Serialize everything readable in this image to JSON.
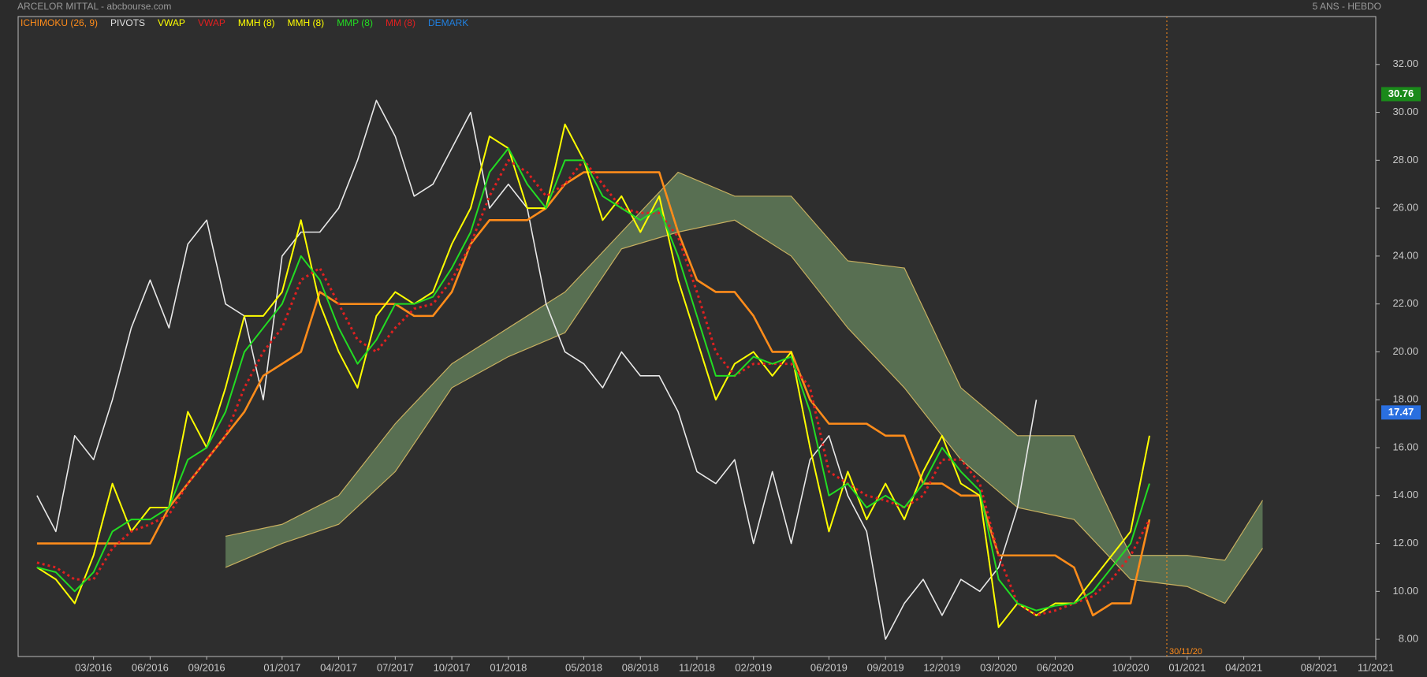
{
  "chart_data": {
    "type": "line",
    "title": "ARCELOR MITTAL - abcbourse.com",
    "subtitle": "5 ANS - HEBDO",
    "legend": [
      {
        "name": "ICHIMOKU (26, 9)",
        "color": "#ff8c1a"
      },
      {
        "name": "PIVOTS",
        "color": "#e0e0e0"
      },
      {
        "name": "VWAP",
        "color": "#ffff00"
      },
      {
        "name": "VWAP",
        "color": "#e02020"
      },
      {
        "name": "MMH (8)",
        "color": "#ffff00"
      },
      {
        "name": "MMH (8)",
        "color": "#ffff00"
      },
      {
        "name": "MMP (8)",
        "color": "#22dd22"
      },
      {
        "name": "MM (8)",
        "color": "#e02020"
      },
      {
        "name": "DEMARK",
        "color": "#2080e0"
      }
    ],
    "x": [
      "12/2015",
      "01/2016",
      "02/2016",
      "03/2016",
      "04/2016",
      "05/2016",
      "06/2016",
      "07/2016",
      "08/2016",
      "09/2016",
      "10/2016",
      "11/2016",
      "12/2016",
      "01/2017",
      "02/2017",
      "03/2017",
      "04/2017",
      "05/2017",
      "06/2017",
      "07/2017",
      "08/2017",
      "09/2017",
      "10/2017",
      "11/2017",
      "12/2017",
      "01/2018",
      "02/2018",
      "03/2018",
      "04/2018",
      "05/2018",
      "06/2018",
      "07/2018",
      "08/2018",
      "09/2018",
      "10/2018",
      "11/2018",
      "12/2018",
      "01/2019",
      "02/2019",
      "03/2019",
      "04/2019",
      "05/2019",
      "06/2019",
      "07/2019",
      "08/2019",
      "09/2019",
      "10/2019",
      "11/2019",
      "12/2019",
      "01/2020",
      "02/2020",
      "03/2020",
      "04/2020",
      "05/2020",
      "06/2020",
      "07/2020",
      "08/2020",
      "09/2020",
      "10/2020",
      "11/2020"
    ],
    "series": [
      {
        "name": "PIVOTS",
        "color": "#e8e8e8",
        "width": 1.6,
        "values": [
          14.0,
          12.5,
          16.5,
          15.5,
          18.0,
          21.0,
          23.0,
          21.0,
          24.5,
          25.5,
          22.0,
          21.5,
          18.0,
          24.0,
          25.0,
          25.0,
          26.0,
          28.0,
          30.5,
          29.0,
          26.5,
          27.0,
          28.5,
          30.0,
          26.0,
          27.0,
          26.0,
          22.0,
          20.0,
          19.5,
          18.5,
          20.0,
          19.0,
          19.0,
          17.5,
          15.0,
          14.5,
          15.5,
          12.0,
          15.0,
          12.0,
          15.5,
          16.5,
          14.0,
          12.5,
          8.0,
          9.5,
          10.5,
          9.0,
          10.5,
          10.0,
          11.0,
          13.5,
          18.0,
          null,
          null,
          null,
          null,
          null,
          null
        ]
      },
      {
        "name": "ICHIMOKU (26, 9)",
        "color": "#ff8c1a",
        "width": 2.6,
        "values": [
          12.0,
          12.0,
          12.0,
          12.0,
          12.0,
          12.0,
          12.0,
          13.5,
          14.5,
          15.5,
          16.5,
          17.5,
          19.0,
          19.5,
          20.0,
          22.5,
          22.0,
          22.0,
          22.0,
          22.0,
          21.5,
          21.5,
          22.5,
          24.5,
          25.5,
          25.5,
          25.5,
          26.0,
          27.0,
          27.5,
          27.5,
          27.5,
          27.5,
          27.5,
          25.0,
          23.0,
          22.5,
          22.5,
          21.5,
          20.0,
          20.0,
          18.0,
          17.0,
          17.0,
          17.0,
          16.5,
          16.5,
          14.5,
          14.5,
          14.0,
          14.0,
          11.5,
          11.5,
          11.5,
          11.5,
          11.0,
          9.0,
          9.5,
          9.5,
          13.0
        ]
      },
      {
        "name": "VWAP",
        "color": "#ffff00",
        "width": 2,
        "values": [
          11.0,
          10.5,
          9.5,
          11.5,
          14.5,
          12.5,
          13.5,
          13.5,
          17.5,
          16.0,
          18.5,
          21.5,
          21.5,
          22.5,
          25.5,
          22.0,
          20.0,
          18.5,
          21.5,
          22.5,
          22.0,
          22.5,
          24.5,
          26.0,
          29.0,
          28.5,
          26.0,
          26.0,
          29.5,
          28.0,
          25.5,
          26.5,
          25.0,
          26.5,
          23.0,
          20.5,
          18.0,
          19.5,
          20.0,
          19.0,
          20.0,
          16.0,
          12.5,
          15.0,
          13.0,
          14.5,
          13.0,
          15.0,
          16.5,
          14.5,
          14.0,
          8.5,
          9.5,
          9.0,
          9.5,
          9.5,
          10.5,
          11.5,
          12.5,
          16.5
        ]
      },
      {
        "name": "MM (8)",
        "color": "#e02020",
        "width": 3,
        "dash": "3 4",
        "values": [
          11.2,
          11.0,
          10.5,
          10.5,
          11.8,
          12.5,
          12.8,
          13.2,
          14.5,
          15.5,
          16.5,
          18.5,
          20.0,
          21.0,
          23.0,
          23.5,
          22.0,
          20.5,
          20.0,
          21.0,
          21.8,
          22.0,
          23.0,
          24.5,
          26.5,
          28.0,
          27.5,
          26.5,
          27.0,
          28.0,
          27.0,
          26.0,
          25.8,
          25.8,
          24.8,
          22.5,
          20.0,
          19.0,
          19.5,
          19.5,
          19.5,
          18.5,
          15.0,
          14.5,
          14.0,
          13.8,
          13.5,
          14.0,
          15.5,
          15.5,
          14.5,
          11.5,
          9.5,
          9.0,
          9.2,
          9.5,
          9.8,
          10.5,
          11.5,
          13.0
        ]
      },
      {
        "name": "MMP (8)",
        "color": "#22dd22",
        "width": 2,
        "values": [
          11.0,
          10.8,
          10.0,
          10.8,
          12.5,
          13.0,
          13.0,
          13.5,
          15.5,
          16.0,
          17.5,
          20.0,
          21.0,
          22.0,
          24.0,
          23.0,
          21.0,
          19.5,
          20.5,
          22.0,
          22.0,
          22.3,
          23.5,
          25.0,
          27.5,
          28.5,
          27.0,
          26.0,
          28.0,
          28.0,
          26.5,
          26.0,
          25.5,
          26.0,
          24.0,
          21.5,
          19.0,
          19.0,
          19.8,
          19.5,
          19.8,
          17.5,
          14.0,
          14.5,
          13.5,
          14.0,
          13.5,
          14.5,
          16.0,
          15.0,
          14.2,
          10.5,
          9.5,
          9.2,
          9.4,
          9.5,
          10.0,
          11.0,
          12.0,
          14.5
        ]
      }
    ],
    "cloud": {
      "color": "#5f7a58",
      "edge_color": "#c8b060",
      "x": [
        "10/2016",
        "01/2017",
        "04/2017",
        "07/2017",
        "10/2017",
        "01/2018",
        "04/2018",
        "07/2018",
        "10/2018",
        "01/2019",
        "04/2019",
        "07/2019",
        "10/2019",
        "01/2020",
        "04/2020",
        "07/2020",
        "10/2020",
        "01/2021",
        "03/2021",
        "05/2021"
      ],
      "span_a": [
        12.3,
        12.8,
        14.0,
        17.0,
        19.5,
        21.0,
        22.5,
        25.0,
        27.5,
        26.5,
        26.5,
        23.8,
        23.5,
        18.5,
        16.5,
        16.5,
        11.5,
        11.5,
        11.3,
        13.8
      ],
      "span_b": [
        11.0,
        12.0,
        12.8,
        15.0,
        18.5,
        19.8,
        20.8,
        24.3,
        25.0,
        25.5,
        24.0,
        21.0,
        18.5,
        15.5,
        13.5,
        13.0,
        10.5,
        10.2,
        9.5,
        11.8
      ]
    },
    "price_labels": [
      {
        "value": 30.76,
        "color": "#1a8a1a"
      },
      {
        "value": 17.47,
        "color": "#2a6fe0"
      }
    ],
    "cursor": {
      "x": "11/2020",
      "label": "30/11/20",
      "color": "#ff8c1a"
    },
    "xlim": [
      "11/2015",
      "11/2021"
    ],
    "xticks": [
      "03/2016",
      "06/2016",
      "09/2016",
      "01/2017",
      "04/2017",
      "07/2017",
      "10/2017",
      "01/2018",
      "05/2018",
      "08/2018",
      "11/2018",
      "02/2019",
      "06/2019",
      "09/2019",
      "12/2019",
      "03/2020",
      "06/2020",
      "10/2020",
      "01/2021",
      "04/2021",
      "08/2021",
      "11/2021"
    ],
    "ylim": [
      7.28,
      34.0
    ],
    "yticks": [
      {
        "value": 8,
        "label": "8.00"
      },
      {
        "value": 10,
        "label": "10.00"
      },
      {
        "value": 12,
        "label": "12.00"
      },
      {
        "value": 14,
        "label": "14.00"
      },
      {
        "value": 16,
        "label": "16.00"
      },
      {
        "value": 18,
        "label": "18.00"
      },
      {
        "value": 20,
        "label": "20.00"
      },
      {
        "value": 22,
        "label": "22.00"
      },
      {
        "value": 24,
        "label": "24.00"
      },
      {
        "value": 26,
        "label": "26.00"
      },
      {
        "value": 28,
        "label": "28.00"
      },
      {
        "value": 30,
        "label": "30.00"
      },
      {
        "value": 32,
        "label": "32.00"
      }
    ]
  }
}
